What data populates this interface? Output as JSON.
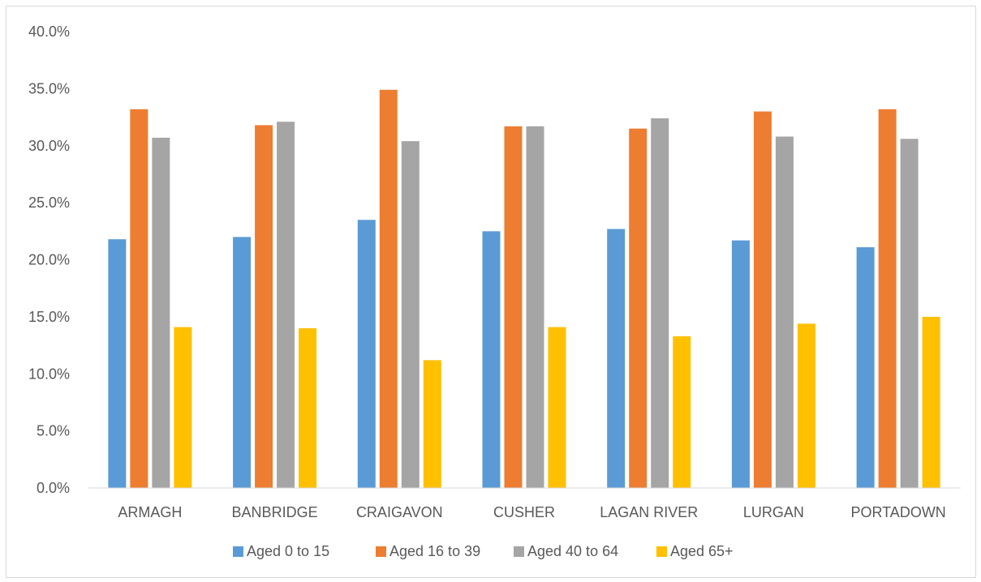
{
  "chart_data": {
    "type": "bar",
    "title": "",
    "xlabel": "",
    "ylabel": "",
    "ylim": [
      0,
      40
    ],
    "ytick_step": 5,
    "ytick_format": "percent_1dp",
    "categories": [
      "ARMAGH",
      "BANBRIDGE",
      "CRAIGAVON",
      "CUSHER",
      "LAGAN RIVER",
      "LURGAN",
      "PORTADOWN"
    ],
    "series": [
      {
        "name": "Aged 0 to 15",
        "color": "#5b9bd5",
        "values": [
          21.8,
          22.0,
          23.5,
          22.5,
          22.7,
          21.7,
          21.1
        ]
      },
      {
        "name": "Aged 16 to 39",
        "color": "#ed7d31",
        "values": [
          33.2,
          31.8,
          34.9,
          31.7,
          31.5,
          33.0,
          33.2
        ]
      },
      {
        "name": "Aged 40 to 64",
        "color": "#a5a5a5",
        "values": [
          30.7,
          32.1,
          30.4,
          31.7,
          32.4,
          30.8,
          30.6
        ]
      },
      {
        "name": "Aged 65+",
        "color": "#ffc000",
        "values": [
          14.1,
          14.0,
          11.2,
          14.1,
          13.3,
          14.4,
          15.0
        ]
      }
    ],
    "grid": false,
    "legend_position": "bottom"
  }
}
